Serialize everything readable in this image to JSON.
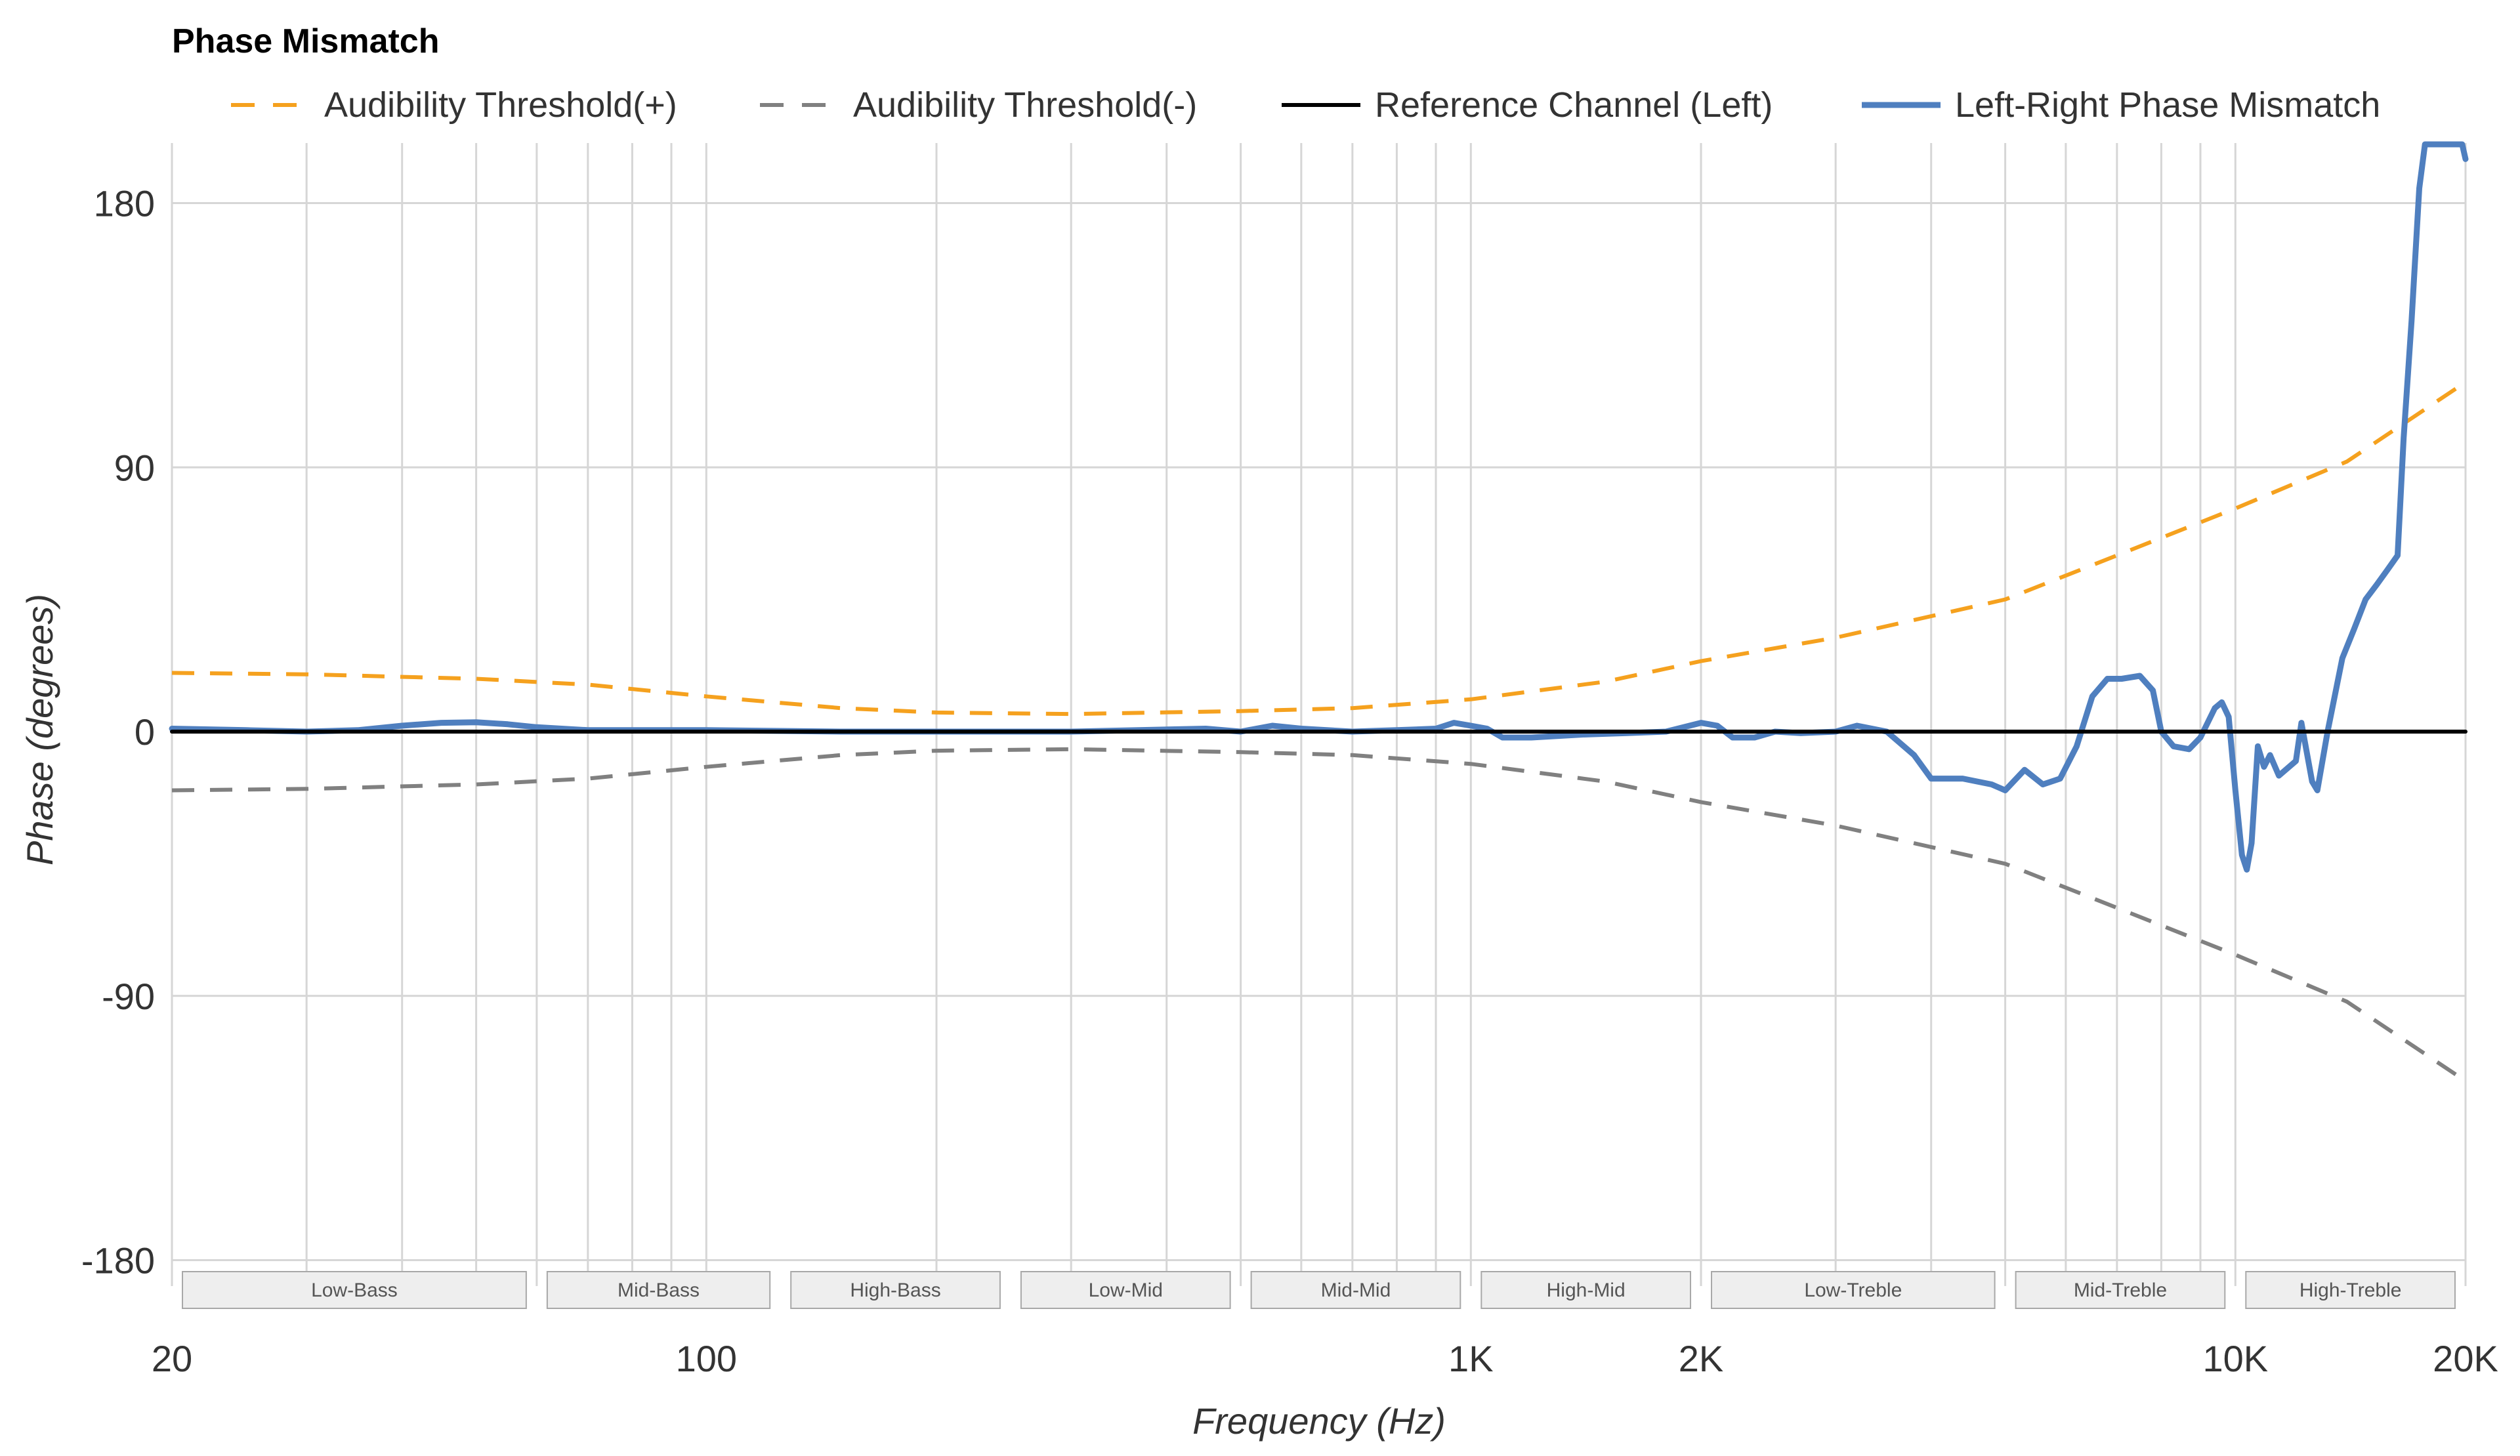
{
  "chart_data": {
    "type": "line",
    "title": "Phase Mismatch",
    "xlabel": "Frequency (Hz)",
    "ylabel": "Phase (degrees)",
    "x_scale": "log",
    "xlim": [
      20,
      20000
    ],
    "ylim": [
      -180,
      180
    ],
    "visible_ylim": [
      -180,
      200
    ],
    "grid": true,
    "legend_position": "top",
    "x_ticks": [
      {
        "value": 20,
        "label": "20"
      },
      {
        "value": 100,
        "label": "100"
      },
      {
        "value": 1000,
        "label": "1K"
      },
      {
        "value": 2000,
        "label": "2K"
      },
      {
        "value": 10000,
        "label": "10K"
      },
      {
        "value": 20000,
        "label": "20K"
      }
    ],
    "y_ticks": [
      {
        "value": 180,
        "label": "180"
      },
      {
        "value": 90,
        "label": "90"
      },
      {
        "value": 0,
        "label": "0"
      },
      {
        "value": -90,
        "label": "-90"
      },
      {
        "value": -180,
        "label": "-180"
      }
    ],
    "bands": [
      {
        "label": "Low-Bass",
        "from": 20,
        "to": 60
      },
      {
        "label": "Mid-Bass",
        "from": 60,
        "to": 125
      },
      {
        "label": "High-Bass",
        "from": 125,
        "to": 250
      },
      {
        "label": "Low-Mid",
        "from": 250,
        "to": 500
      },
      {
        "label": "Mid-Mid",
        "from": 500,
        "to": 1000
      },
      {
        "label": "High-Mid",
        "from": 1000,
        "to": 2000
      },
      {
        "label": "Low-Treble",
        "from": 2000,
        "to": 5000
      },
      {
        "label": "Mid-Treble",
        "from": 5000,
        "to": 10000
      },
      {
        "label": "High-Treble",
        "from": 10000,
        "to": 20000
      }
    ],
    "series": [
      {
        "name": "Audibility Threshold(+)",
        "color": "#f5a11e",
        "style": "dashed",
        "points": [
          [
            20,
            20
          ],
          [
            30,
            19.5
          ],
          [
            50,
            18
          ],
          [
            70,
            16
          ],
          [
            100,
            12
          ],
          [
            150,
            8
          ],
          [
            200,
            6.5
          ],
          [
            300,
            6
          ],
          [
            500,
            7
          ],
          [
            700,
            8
          ],
          [
            1000,
            11
          ],
          [
            1500,
            17
          ],
          [
            2000,
            24
          ],
          [
            3000,
            32
          ],
          [
            5000,
            45
          ],
          [
            7000,
            60
          ],
          [
            10000,
            76
          ],
          [
            14000,
            92
          ],
          [
            20000,
            119
          ]
        ]
      },
      {
        "name": "Audibility Threshold(-)",
        "color": "#808080",
        "style": "dashed",
        "points": [
          [
            20,
            -20
          ],
          [
            30,
            -19.5
          ],
          [
            50,
            -18
          ],
          [
            70,
            -16
          ],
          [
            100,
            -12
          ],
          [
            150,
            -8
          ],
          [
            200,
            -6.5
          ],
          [
            300,
            -6
          ],
          [
            500,
            -7
          ],
          [
            700,
            -8
          ],
          [
            1000,
            -11
          ],
          [
            1500,
            -17
          ],
          [
            2000,
            -24
          ],
          [
            3000,
            -32
          ],
          [
            5000,
            -45
          ],
          [
            7000,
            -60
          ],
          [
            10000,
            -76
          ],
          [
            14000,
            -92
          ],
          [
            20000,
            -119
          ]
        ]
      },
      {
        "name": "Reference Channel (Left)",
        "color": "#000000",
        "style": "solid",
        "points": [
          [
            20,
            0
          ],
          [
            20000,
            0
          ]
        ]
      },
      {
        "name": "Left-Right Phase Mismatch",
        "color": "#4f7fbf",
        "style": "solid",
        "points": [
          [
            20,
            1
          ],
          [
            25,
            0.5
          ],
          [
            30,
            0
          ],
          [
            35,
            0.5
          ],
          [
            40,
            2
          ],
          [
            45,
            3
          ],
          [
            50,
            3.2
          ],
          [
            55,
            2.5
          ],
          [
            60,
            1.5
          ],
          [
            70,
            0.5
          ],
          [
            100,
            0.5
          ],
          [
            150,
            0
          ],
          [
            200,
            0
          ],
          [
            300,
            0
          ],
          [
            450,
            1
          ],
          [
            500,
            0
          ],
          [
            550,
            2
          ],
          [
            600,
            1
          ],
          [
            700,
            0
          ],
          [
            800,
            0.5
          ],
          [
            900,
            1
          ],
          [
            950,
            3
          ],
          [
            1000,
            2
          ],
          [
            1050,
            1
          ],
          [
            1100,
            -2
          ],
          [
            1200,
            -2
          ],
          [
            1400,
            -1
          ],
          [
            1600,
            -0.5
          ],
          [
            1800,
            0
          ],
          [
            2000,
            3
          ],
          [
            2100,
            2
          ],
          [
            2200,
            -2
          ],
          [
            2350,
            -2
          ],
          [
            2500,
            0
          ],
          [
            2700,
            -0.5
          ],
          [
            3000,
            0
          ],
          [
            3200,
            2
          ],
          [
            3500,
            0
          ],
          [
            3800,
            -8
          ],
          [
            4000,
            -16
          ],
          [
            4400,
            -16
          ],
          [
            4800,
            -18
          ],
          [
            5000,
            -20
          ],
          [
            5300,
            -13
          ],
          [
            5600,
            -18
          ],
          [
            5900,
            -16
          ],
          [
            6200,
            -5
          ],
          [
            6500,
            12
          ],
          [
            6800,
            18
          ],
          [
            7100,
            18
          ],
          [
            7500,
            19
          ],
          [
            7800,
            14
          ],
          [
            8000,
            0
          ],
          [
            8300,
            -5
          ],
          [
            8700,
            -6
          ],
          [
            9000,
            -2
          ],
          [
            9400,
            8
          ],
          [
            9600,
            10
          ],
          [
            9800,
            5
          ],
          [
            10000,
            -20
          ],
          [
            10200,
            -42
          ],
          [
            10350,
            -47
          ],
          [
            10500,
            -38
          ],
          [
            10700,
            -5
          ],
          [
            10900,
            -12
          ],
          [
            11100,
            -8
          ],
          [
            11400,
            -15
          ],
          [
            12000,
            -10
          ],
          [
            12200,
            3
          ],
          [
            12600,
            -17
          ],
          [
            12800,
            -20
          ],
          [
            13200,
            0
          ],
          [
            13800,
            25
          ],
          [
            14300,
            35
          ],
          [
            14800,
            45
          ],
          [
            15300,
            50
          ],
          [
            15800,
            55
          ],
          [
            16300,
            60
          ],
          [
            16600,
            100
          ],
          [
            17000,
            140
          ],
          [
            17400,
            185
          ],
          [
            17700,
            200
          ],
          [
            19800,
            200
          ],
          [
            20000,
            195
          ]
        ]
      }
    ]
  }
}
